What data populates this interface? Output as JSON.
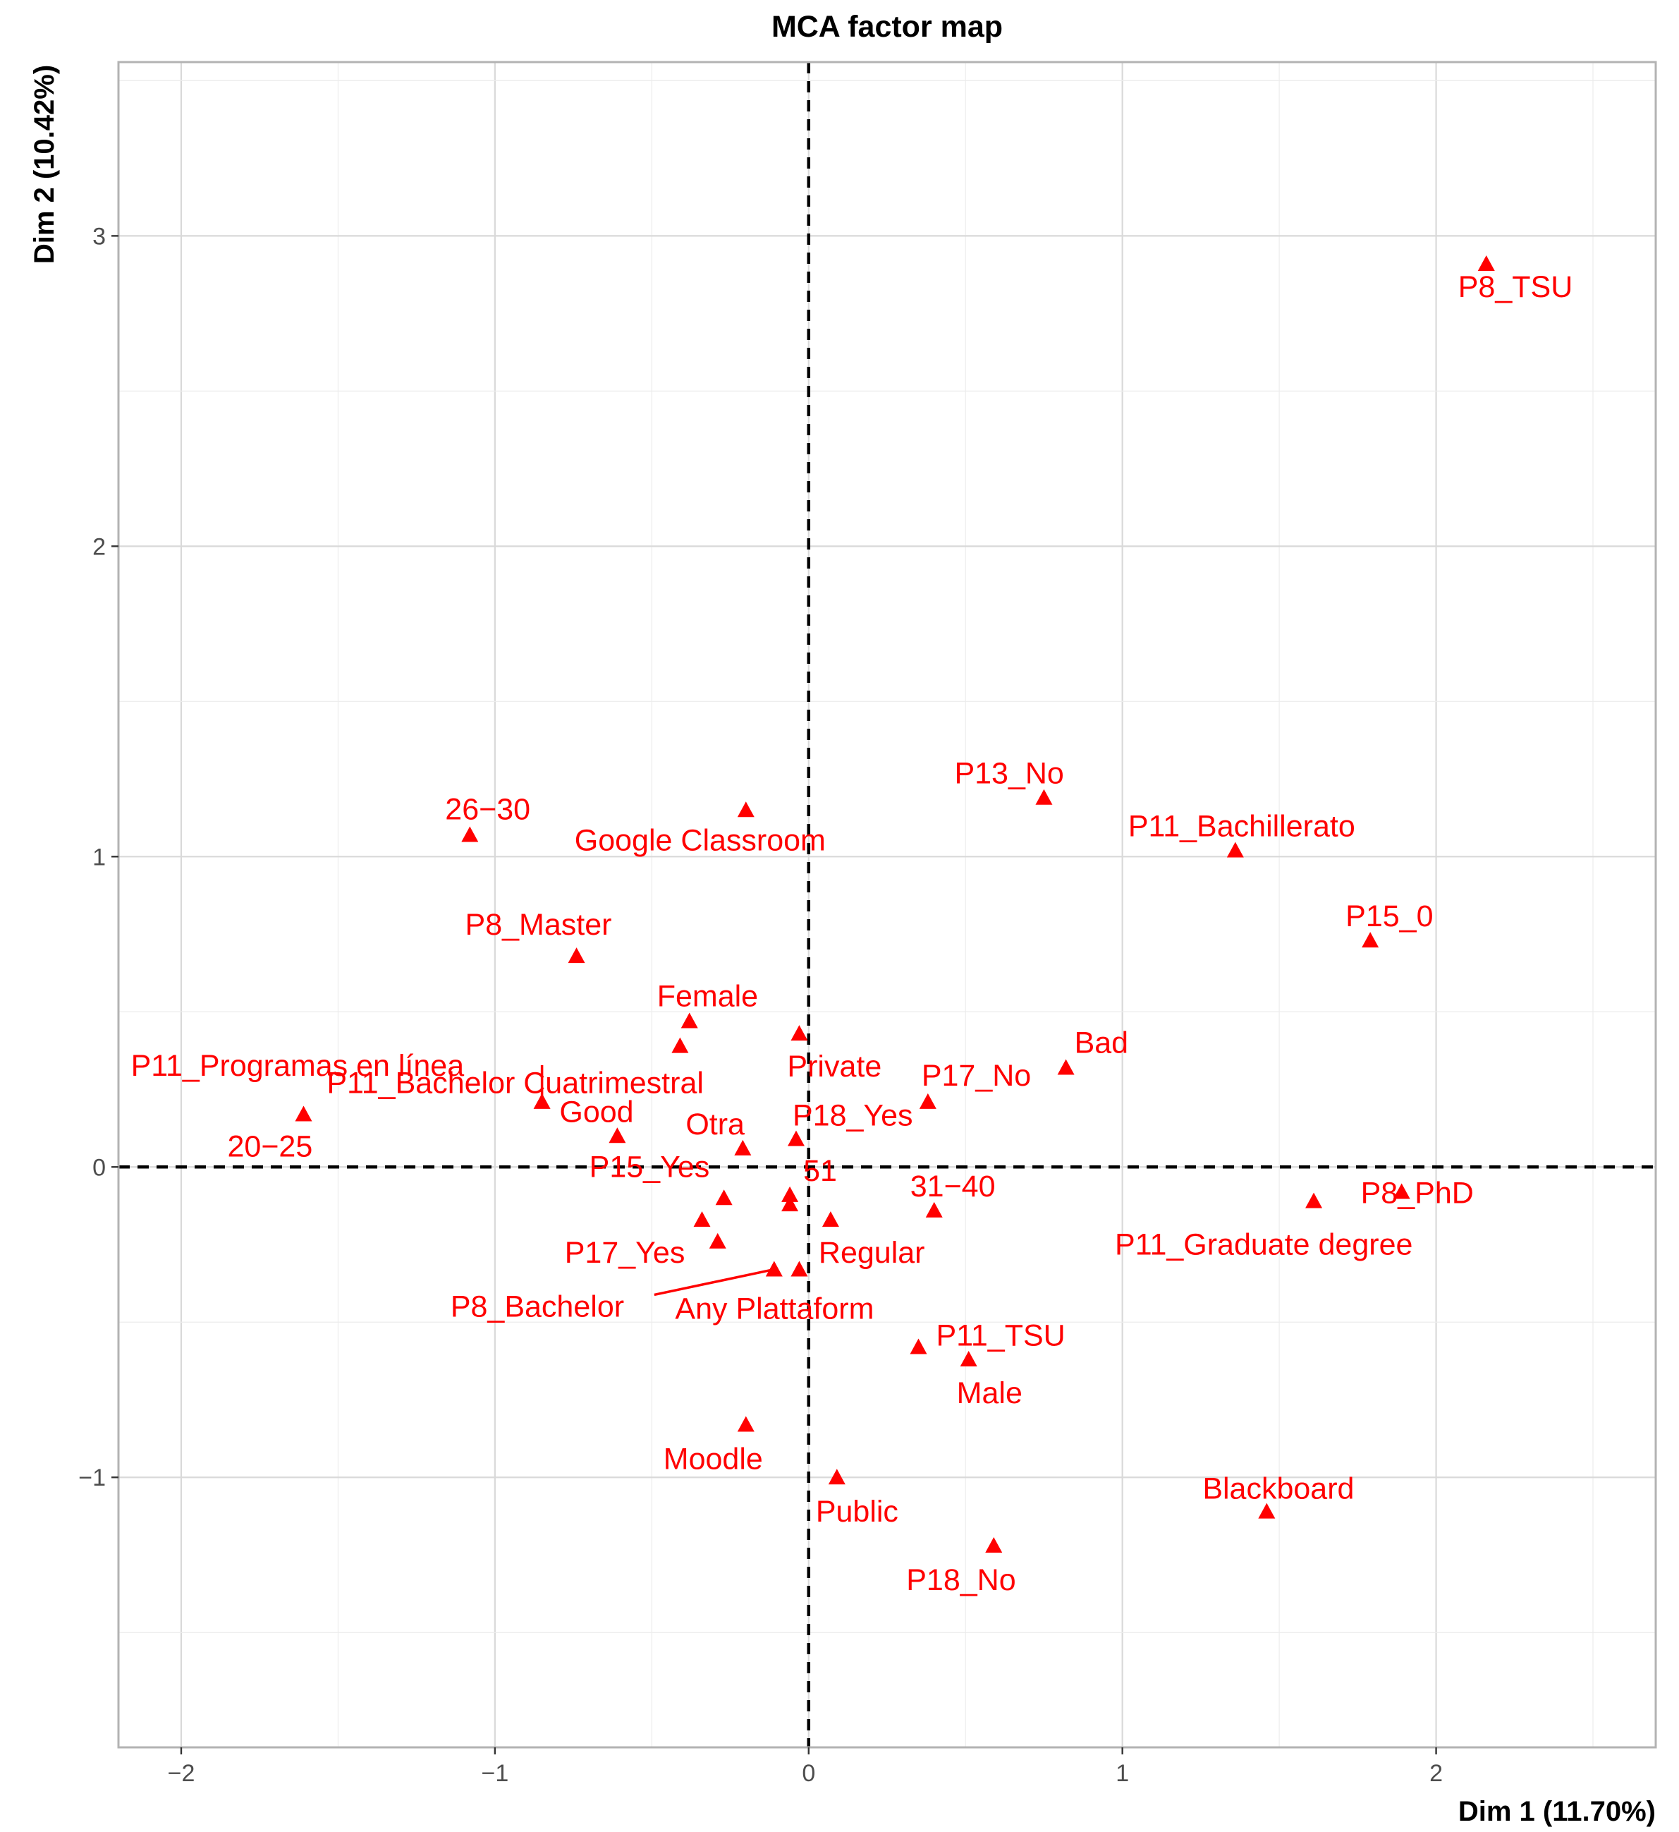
{
  "chart_data": {
    "type": "scatter",
    "title": "MCA factor map",
    "xlabel": "Dim 1 (11.70%)",
    "ylabel": "Dim 2 (10.42%)",
    "xlim": [
      -2.2,
      2.7
    ],
    "ylim": [
      -1.87,
      3.56
    ],
    "x_ticks": [
      -2,
      -1,
      0,
      1,
      2
    ],
    "y_ticks": [
      -1,
      0,
      1,
      2,
      3
    ],
    "x_tick_labels": [
      "−2",
      "−1",
      "0",
      "1",
      "2"
    ],
    "y_tick_labels": [
      "−1",
      "0",
      "1",
      "2",
      "3"
    ],
    "color": "#ff0000",
    "marker": "triangle",
    "reference_lines": {
      "x": 0,
      "y": 0
    },
    "points": [
      {
        "label": "P8_TSU",
        "x": 2.16,
        "y": 2.91
      },
      {
        "label": "P13_No",
        "x": 0.75,
        "y": 1.19
      },
      {
        "label": "P11_Bachillerato",
        "x": 1.36,
        "y": 1.02
      },
      {
        "label": "P15_0",
        "x": 1.79,
        "y": 0.73
      },
      {
        "label": "26−30",
        "x": -1.08,
        "y": 1.07
      },
      {
        "label": "Google Classroom",
        "x": -0.2,
        "y": 1.15
      },
      {
        "label": "P8_Master",
        "x": -0.74,
        "y": 0.68
      },
      {
        "label": "Female",
        "x": -0.38,
        "y": 0.47
      },
      {
        "label": "Bad",
        "x": 0.82,
        "y": 0.32
      },
      {
        "label": "P17_No",
        "x": 0.38,
        "y": 0.21
      },
      {
        "label": "P11_Programas en línea",
        "x": -0.85,
        "y": 0.21
      },
      {
        "label": "P11_Bachelor Cuatrimestral",
        "x": -0.41,
        "y": 0.39
      },
      {
        "label": "Private",
        "x": -0.03,
        "y": 0.43
      },
      {
        "label": "20−25",
        "x": -1.61,
        "y": 0.17
      },
      {
        "label": "Good",
        "x": -0.61,
        "y": 0.1
      },
      {
        "label": "Otra",
        "x": -0.21,
        "y": 0.06
      },
      {
        "label": "P18_Yes",
        "x": -0.04,
        "y": 0.09
      },
      {
        "label": "51",
        "x": -0.06,
        "y": -0.09
      },
      {
        "label": "P15_Yes",
        "x": -0.27,
        "y": -0.1
      },
      {
        "label": "31−40",
        "x": 0.4,
        "y": -0.14
      },
      {
        "label": "P8_PhD",
        "x": 1.89,
        "y": -0.08
      },
      {
        "label": "P11_Graduate degree",
        "x": 1.61,
        "y": -0.11
      },
      {
        "label": "P17_Yes",
        "x": -0.29,
        "y": -0.24
      },
      {
        "label": "Regular",
        "x": 0.07,
        "y": -0.17
      },
      {
        "label": "P8_Bachelor",
        "x": -0.11,
        "y": -0.33
      },
      {
        "label": "Any Plattaform",
        "x": -0.03,
        "y": -0.33
      },
      {
        "label": "P11_TSU",
        "x": 0.35,
        "y": -0.58
      },
      {
        "label": "Male",
        "x": 0.51,
        "y": -0.62
      },
      {
        "label": "Moodle",
        "x": -0.2,
        "y": -0.83
      },
      {
        "label": "Public",
        "x": 0.09,
        "y": -1.0
      },
      {
        "label": "Blackboard",
        "x": 1.46,
        "y": -1.11
      },
      {
        "label": "P18_No",
        "x": 0.59,
        "y": -1.22
      },
      {
        "label": "",
        "x": -0.34,
        "y": -0.17
      },
      {
        "label": "",
        "x": -0.06,
        "y": -0.12
      }
    ]
  }
}
